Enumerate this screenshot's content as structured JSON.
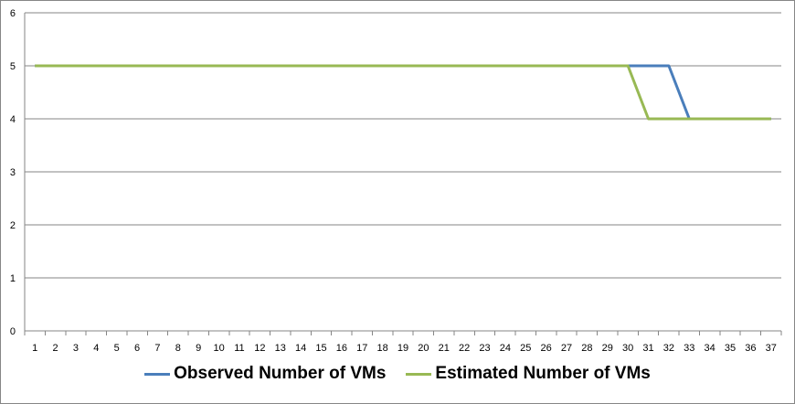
{
  "chart_data": {
    "type": "line",
    "x": [
      1,
      2,
      3,
      4,
      5,
      6,
      7,
      8,
      9,
      10,
      11,
      12,
      13,
      14,
      15,
      16,
      17,
      18,
      19,
      20,
      21,
      22,
      23,
      24,
      25,
      26,
      27,
      28,
      29,
      30,
      31,
      32,
      33,
      34,
      35,
      36,
      37
    ],
    "x_tick_labels": [
      "1",
      "2",
      "3",
      "4",
      "5",
      "6",
      "7",
      "8",
      "9",
      "10",
      "11",
      "12",
      "13",
      "14",
      "15",
      "16",
      "17",
      "18",
      "19",
      "20",
      "21",
      "22",
      "23",
      "24",
      "25",
      "26",
      "27",
      "28",
      "29",
      "30",
      "31",
      "32",
      "33",
      "34",
      "35",
      "36",
      "37"
    ],
    "y_tick_labels": [
      "0",
      "1",
      "2",
      "3",
      "4",
      "5",
      "6"
    ],
    "ylim": [
      0,
      6
    ],
    "grid": "horizontal",
    "legend_position": "bottom",
    "series": [
      {
        "name": "Observed Number of VMs",
        "color": "#4a7ebb",
        "values": [
          5,
          5,
          5,
          5,
          5,
          5,
          5,
          5,
          5,
          5,
          5,
          5,
          5,
          5,
          5,
          5,
          5,
          5,
          5,
          5,
          5,
          5,
          5,
          5,
          5,
          5,
          5,
          5,
          5,
          5,
          5,
          5,
          4,
          4,
          4,
          4,
          4
        ]
      },
      {
        "name": "Estimated Number of VMs",
        "color": "#98b954",
        "values": [
          5,
          5,
          5,
          5,
          5,
          5,
          5,
          5,
          5,
          5,
          5,
          5,
          5,
          5,
          5,
          5,
          5,
          5,
          5,
          5,
          5,
          5,
          5,
          5,
          5,
          5,
          5,
          5,
          5,
          5,
          4,
          4,
          4,
          4,
          4,
          4,
          4
        ]
      }
    ],
    "gridline_color": "#868686"
  }
}
